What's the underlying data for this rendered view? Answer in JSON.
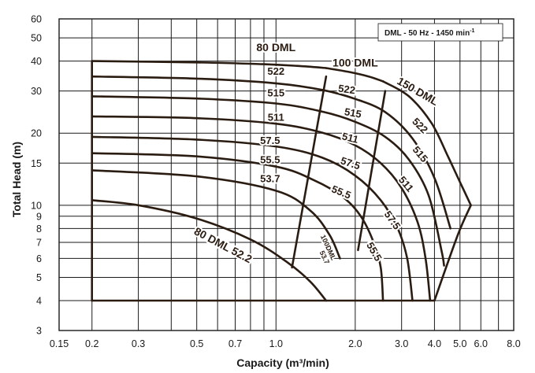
{
  "chart_data": {
    "type": "line",
    "annotation": "DML - 50 Hz - 1450 min",
    "annotation_sup": "-1",
    "xlabel": "Capacity  (m³/min)",
    "ylabel": "Total Head  (m)",
    "x_scale": "log",
    "y_scale": "log",
    "xlim": [
      0.15,
      8.0
    ],
    "ylim": [
      3,
      60
    ],
    "grid": true,
    "legend": "none",
    "x_ticks": [
      0.15,
      0.2,
      0.3,
      0.5,
      0.7,
      1.0,
      2.0,
      3.0,
      4.0,
      5.0,
      6.0,
      8.0
    ],
    "x_tick_labels": [
      "0.15",
      "0.2",
      "0.3",
      "0.5",
      "0.7",
      "1.0",
      "2.0",
      "3.0",
      "4.0",
      "5.0",
      "6.0",
      "8.0"
    ],
    "y_ticks": [
      3,
      4,
      5,
      6,
      7,
      8,
      9,
      10,
      15,
      20,
      30,
      40,
      50,
      60
    ],
    "y_tick_labels": [
      "3",
      "4",
      "5",
      "6",
      "7",
      "8",
      "9",
      "10",
      "15",
      "20",
      "30",
      "40",
      "50",
      "60"
    ],
    "x_gridlines": [
      0.2,
      0.3,
      0.4,
      0.5,
      0.6,
      0.7,
      0.8,
      0.9,
      1.0,
      2.0,
      3.0,
      4.0,
      5.0,
      6.0,
      7.0
    ],
    "y_gridlines": [
      4,
      5,
      6,
      7,
      8,
      9,
      10,
      15,
      20,
      30,
      40,
      50
    ],
    "line_color": "#2b1c12",
    "series": [
      {
        "name": "80 DML",
        "points": [
          [
            0.2,
            40
          ],
          [
            0.5,
            39.5
          ],
          [
            0.9,
            38.8
          ],
          [
            1.2,
            38.2
          ],
          [
            1.55,
            37.4
          ]
        ]
      },
      {
        "name": "100 DML",
        "points": [
          [
            1.55,
            37.4
          ],
          [
            1.9,
            36.0
          ],
          [
            2.25,
            34.5
          ],
          [
            2.55,
            32.9
          ]
        ]
      },
      {
        "name": "150 DML",
        "points": [
          [
            2.55,
            32.9
          ],
          [
            3.2,
            28.5
          ],
          [
            3.9,
            22.0
          ],
          [
            4.5,
            16.0
          ],
          [
            5.0,
            12.5
          ],
          [
            5.5,
            10.0
          ]
        ]
      },
      {
        "name": "522",
        "points": [
          [
            0.2,
            34.5
          ],
          [
            0.5,
            33.8
          ],
          [
            1.0,
            32.3
          ],
          [
            1.5,
            30.3
          ],
          [
            2.0,
            27.8
          ],
          [
            2.6,
            24.5
          ],
          [
            3.3,
            19.0
          ],
          [
            4.0,
            13.0
          ],
          [
            4.6,
            8.0
          ]
        ]
      },
      {
        "name": "515",
        "points": [
          [
            0.2,
            28.5
          ],
          [
            0.5,
            27.9
          ],
          [
            1.0,
            26.6
          ],
          [
            1.5,
            24.6
          ],
          [
            2.0,
            22.3
          ],
          [
            2.6,
            19.3
          ],
          [
            3.2,
            15.5
          ],
          [
            3.8,
            11.0
          ],
          [
            4.25,
            6.5
          ],
          [
            4.35,
            5.6
          ]
        ]
      },
      {
        "name": "511",
        "points": [
          [
            0.2,
            23.5
          ],
          [
            0.5,
            23.1
          ],
          [
            1.0,
            21.9
          ],
          [
            1.5,
            20.1
          ],
          [
            2.0,
            17.8
          ],
          [
            2.5,
            15.0
          ],
          [
            3.0,
            11.8
          ],
          [
            3.45,
            8.5
          ],
          [
            3.7,
            6.0
          ],
          [
            3.85,
            4.0
          ]
        ]
      },
      {
        "name": "57.5",
        "points": [
          [
            0.2,
            19.3
          ],
          [
            0.5,
            18.8
          ],
          [
            1.0,
            17.6
          ],
          [
            1.5,
            15.8
          ],
          [
            2.0,
            13.3
          ],
          [
            2.5,
            10.5
          ],
          [
            2.9,
            8.0
          ],
          [
            3.15,
            6.0
          ],
          [
            3.3,
            4.0
          ]
        ]
      },
      {
        "name": "55.5",
        "points": [
          [
            0.2,
            16.5
          ],
          [
            0.5,
            16.0
          ],
          [
            1.0,
            14.5
          ],
          [
            1.4,
            12.7
          ],
          [
            1.8,
            10.8
          ],
          [
            2.1,
            9.0
          ],
          [
            2.35,
            7.0
          ],
          [
            2.5,
            5.5
          ],
          [
            2.55,
            4.0
          ]
        ]
      },
      {
        "name": "53.7",
        "points": [
          [
            0.2,
            14.0
          ],
          [
            0.5,
            13.2
          ],
          [
            1.0,
            11.5
          ],
          [
            1.35,
            9.5
          ],
          [
            1.6,
            7.5
          ],
          [
            1.75,
            6.0
          ]
        ]
      },
      {
        "name": "52.2",
        "points": [
          [
            0.2,
            10.5
          ],
          [
            0.3,
            10.0
          ],
          [
            0.5,
            8.8
          ],
          [
            0.8,
            7.2
          ],
          [
            1.1,
            5.8
          ],
          [
            1.35,
            4.8
          ],
          [
            1.55,
            4.0
          ]
        ]
      },
      {
        "name": "80 DML boundary",
        "points": [
          [
            1.15,
            5.5
          ],
          [
            1.55,
            34.5
          ]
        ]
      },
      {
        "name": "100 DML boundary",
        "points": [
          [
            2.05,
            6.5
          ],
          [
            2.6,
            30.0
          ]
        ]
      },
      {
        "name": "bottom boundary",
        "points": [
          [
            0.2,
            4.0
          ],
          [
            4.0,
            4.0
          ]
        ]
      },
      {
        "name": "left boundary",
        "points": [
          [
            0.2,
            4.0
          ],
          [
            0.2,
            40.0
          ]
        ]
      },
      {
        "name": "150 DML envelope",
        "points": [
          [
            4.0,
            4.0
          ],
          [
            4.9,
            7.5
          ],
          [
            5.5,
            10.0
          ]
        ]
      }
    ],
    "labels": [
      {
        "text": "80 DML",
        "x": 1.0,
        "y": 44.0,
        "angle": 0,
        "size": 14
      },
      {
        "text": "100 DML",
        "x": 2.0,
        "y": 38.0,
        "angle": 0,
        "size": 14
      },
      {
        "text": "150 DML",
        "x": 3.4,
        "y": 29.0,
        "angle": 30,
        "size": 14
      },
      {
        "text": "522",
        "x": 1.0,
        "y": 35.0,
        "angle": 0,
        "size": 13
      },
      {
        "text": "515",
        "x": 1.0,
        "y": 28.5,
        "angle": 0,
        "size": 13
      },
      {
        "text": "511",
        "x": 1.0,
        "y": 22.5,
        "angle": 0,
        "size": 13
      },
      {
        "text": "57.5",
        "x": 0.95,
        "y": 18.0,
        "angle": 0,
        "size": 13
      },
      {
        "text": "55.5",
        "x": 0.95,
        "y": 15.0,
        "angle": 0,
        "size": 13
      },
      {
        "text": "53.7",
        "x": 0.95,
        "y": 12.5,
        "angle": 0,
        "size": 13
      },
      {
        "text": "522",
        "x": 1.85,
        "y": 29.5,
        "angle": 8,
        "size": 13
      },
      {
        "text": "515",
        "x": 1.95,
        "y": 23.5,
        "angle": 10,
        "size": 13
      },
      {
        "text": "511",
        "x": 1.9,
        "y": 18.5,
        "angle": 14,
        "size": 13
      },
      {
        "text": "57.5",
        "x": 1.9,
        "y": 14.5,
        "angle": 18,
        "size": 13
      },
      {
        "text": "55.5",
        "x": 1.75,
        "y": 11.0,
        "angle": 22,
        "size": 13
      },
      {
        "text": "522",
        "x": 3.45,
        "y": 21.0,
        "angle": 45,
        "size": 13
      },
      {
        "text": "515",
        "x": 3.45,
        "y": 16.0,
        "angle": 50,
        "size": 13
      },
      {
        "text": "511",
        "x": 3.05,
        "y": 12.0,
        "angle": 50,
        "size": 13
      },
      {
        "text": "57.5",
        "x": 2.7,
        "y": 8.5,
        "angle": 55,
        "size": 13
      },
      {
        "text": "55.5",
        "x": 2.3,
        "y": 6.3,
        "angle": 60,
        "size": 13
      },
      {
        "text": "100DML",
        "x": 1.55,
        "y": 6.6,
        "angle": 65,
        "size": 9
      },
      {
        "text": "53.7",
        "x": 1.5,
        "y": 6.0,
        "angle": 65,
        "size": 9
      },
      {
        "text": "80 DML 52.2",
        "x": 0.62,
        "y": 6.6,
        "angle": 28,
        "size": 14
      }
    ]
  }
}
